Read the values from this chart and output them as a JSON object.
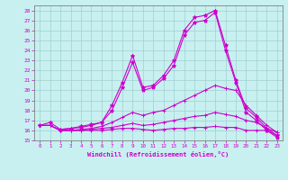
{
  "xlabel": "Windchill (Refroidissement éolien,°C)",
  "background_color": "#c8f0f0",
  "line_color": "#cc00cc",
  "grid_color": "#a0d0d0",
  "xlim": [
    -0.5,
    23.5
  ],
  "ylim": [
    15,
    28.5
  ],
  "yticks": [
    15,
    16,
    17,
    18,
    19,
    20,
    21,
    22,
    23,
    24,
    25,
    26,
    27,
    28
  ],
  "xticks": [
    0,
    1,
    2,
    3,
    4,
    5,
    6,
    7,
    8,
    9,
    10,
    11,
    12,
    13,
    14,
    15,
    16,
    17,
    18,
    19,
    20,
    21,
    22,
    23
  ],
  "lines": [
    {
      "x": [
        0,
        1,
        2,
        3,
        4,
        5,
        6,
        7,
        8,
        9,
        10,
        11,
        12,
        13,
        14,
        15,
        16,
        17,
        18,
        19,
        20,
        21,
        22,
        23
      ],
      "y": [
        16.5,
        16.8,
        16.1,
        16.2,
        16.4,
        16.6,
        16.8,
        18.5,
        20.8,
        23.5,
        20.3,
        20.5,
        21.5,
        23.0,
        26.0,
        27.3,
        27.5,
        28.0,
        24.5,
        21.0,
        18.2,
        17.3,
        16.2,
        15.5
      ],
      "marker": "*",
      "ms": 3
    },
    {
      "x": [
        2,
        3,
        4,
        5,
        6,
        7,
        8,
        9,
        10,
        11,
        12,
        13,
        14,
        15,
        16,
        17,
        18,
        19,
        20,
        21,
        22,
        23
      ],
      "y": [
        16.1,
        16.2,
        16.3,
        16.5,
        16.8,
        18.0,
        20.3,
        22.8,
        20.0,
        20.3,
        21.2,
        22.5,
        25.5,
        26.8,
        27.0,
        27.8,
        24.0,
        20.8,
        17.8,
        17.0,
        16.0,
        15.3
      ],
      "marker": "*",
      "ms": 3
    },
    {
      "x": [
        0,
        1,
        2,
        3,
        4,
        5,
        6,
        7,
        8,
        9,
        10,
        11,
        12,
        13,
        14,
        15,
        16,
        17,
        18,
        19,
        20,
        21,
        22,
        23
      ],
      "y": [
        16.5,
        16.5,
        16.0,
        16.0,
        16.1,
        16.2,
        16.4,
        16.8,
        17.3,
        17.8,
        17.5,
        17.8,
        18.0,
        18.5,
        19.0,
        19.5,
        20.0,
        20.5,
        20.2,
        20.0,
        18.5,
        17.5,
        16.5,
        15.8
      ],
      "marker": "+",
      "ms": 3
    },
    {
      "x": [
        0,
        1,
        2,
        3,
        4,
        5,
        6,
        7,
        8,
        9,
        10,
        11,
        12,
        13,
        14,
        15,
        16,
        17,
        18,
        19,
        20,
        21,
        22,
        23
      ],
      "y": [
        16.5,
        16.5,
        16.0,
        16.0,
        16.0,
        16.1,
        16.2,
        16.3,
        16.5,
        16.7,
        16.5,
        16.6,
        16.8,
        17.0,
        17.2,
        17.4,
        17.5,
        17.8,
        17.6,
        17.4,
        17.0,
        16.8,
        16.2,
        15.8
      ],
      "marker": "+",
      "ms": 3
    },
    {
      "x": [
        0,
        1,
        2,
        3,
        4,
        5,
        6,
        7,
        8,
        9,
        10,
        11,
        12,
        13,
        14,
        15,
        16,
        17,
        18,
        19,
        20,
        21,
        22,
        23
      ],
      "y": [
        16.5,
        16.5,
        16.0,
        16.0,
        16.0,
        16.0,
        16.0,
        16.1,
        16.2,
        16.2,
        16.1,
        16.0,
        16.1,
        16.2,
        16.2,
        16.3,
        16.3,
        16.4,
        16.3,
        16.3,
        16.0,
        16.0,
        16.0,
        15.5
      ],
      "marker": "+",
      "ms": 3
    }
  ]
}
